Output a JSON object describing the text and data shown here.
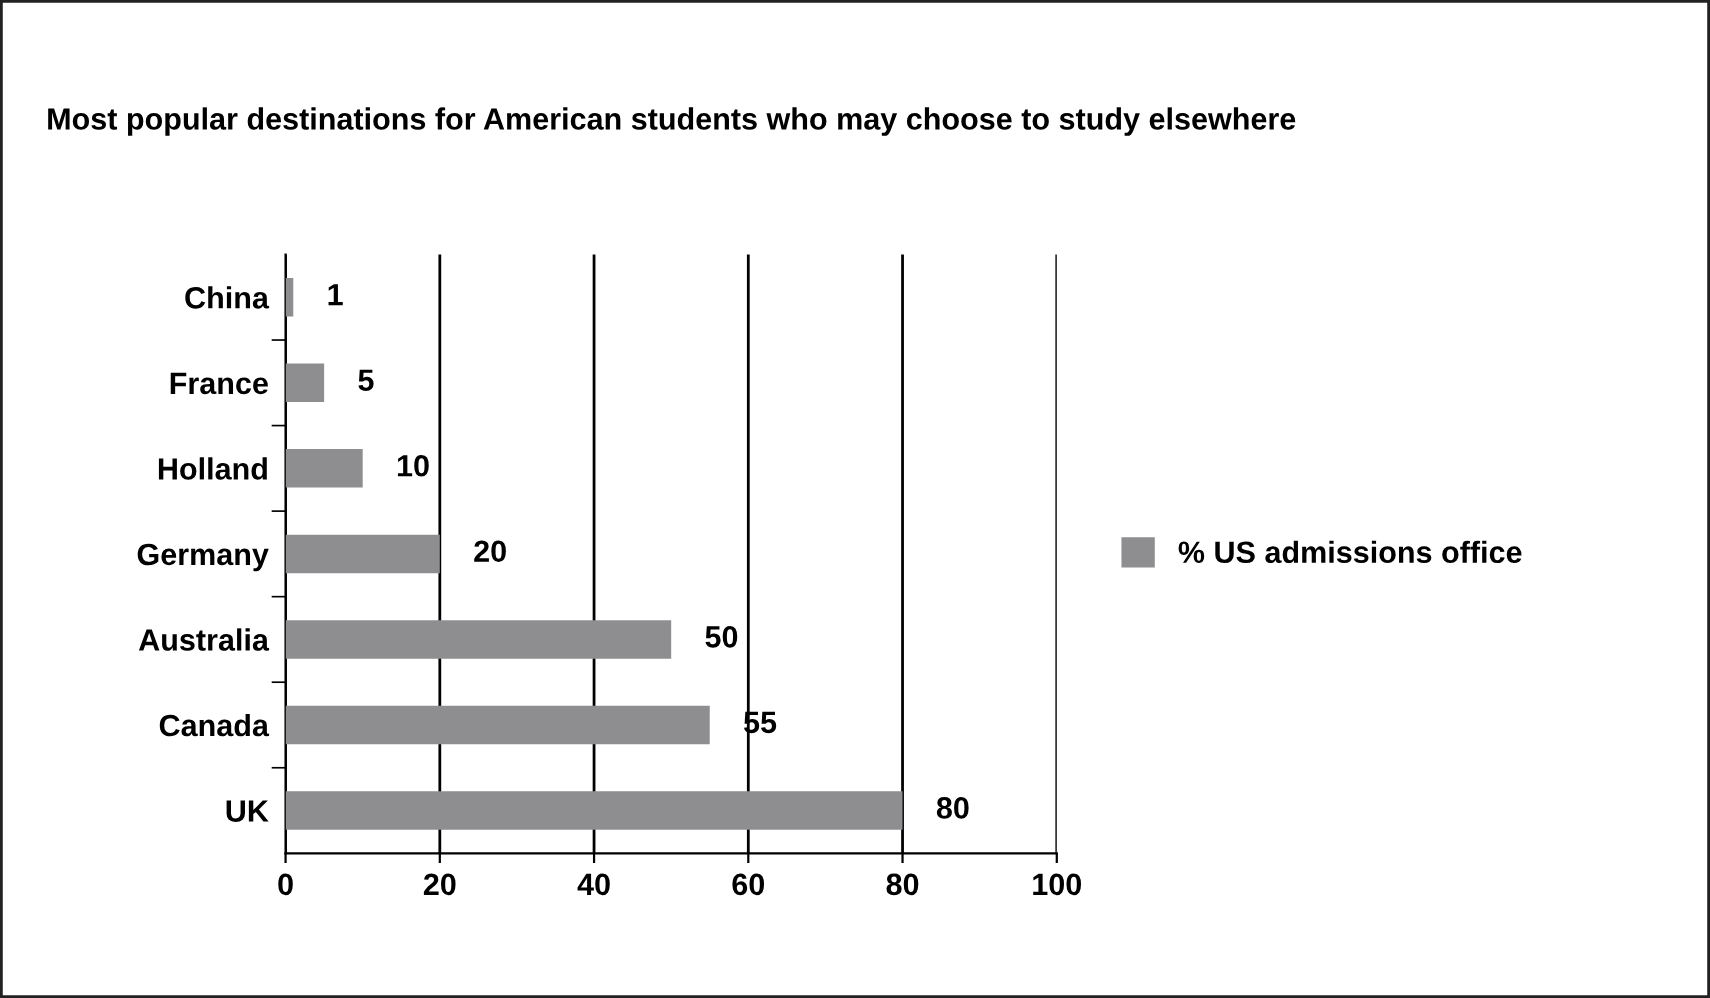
{
  "chart_data": {
    "type": "bar",
    "orientation": "horizontal",
    "title": "Most popular destinations for American students who may choose to study elsewhere",
    "categories": [
      "China",
      "France",
      "Holland",
      "Germany",
      "Australia",
      "Canada",
      "UK"
    ],
    "series": [
      {
        "name": "% US admissions office",
        "color": "#8e8e91",
        "values": [
          1,
          5,
          10,
          20,
          50,
          55,
          80
        ]
      }
    ],
    "xlim": [
      0,
      100
    ],
    "xticks": [
      0,
      20,
      40,
      60,
      80,
      100
    ],
    "grid": "x",
    "legend": "right",
    "data_labels": true
  }
}
